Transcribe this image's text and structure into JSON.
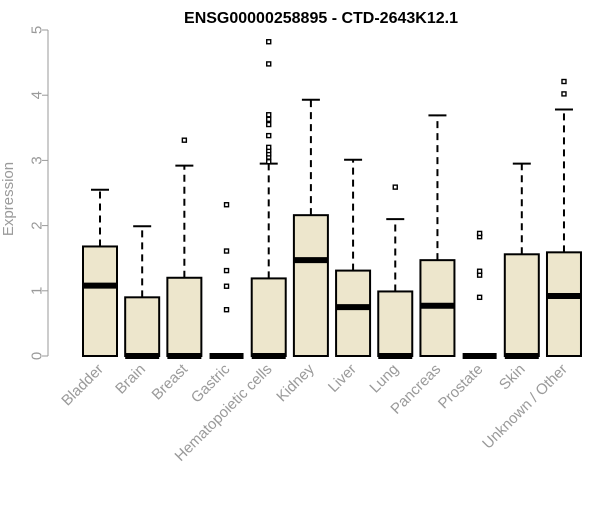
{
  "chart_data": {
    "type": "boxplot",
    "title": "ENSG00000258895 - CTD-2643K12.1",
    "xlabel": "",
    "ylabel": "Expression",
    "ylim": [
      0,
      5
    ],
    "yticks": [
      "0",
      "1",
      "2",
      "3",
      "4",
      "5"
    ],
    "grid": false,
    "colors": {
      "box_fill": "#ede6cc",
      "stroke": "#000000",
      "axis": "#9a9a9a",
      "label": "#9a9a9a"
    },
    "categories": [
      "Bladder",
      "Brain",
      "Breast",
      "Gastric",
      "Hematopoietic cells",
      "Kidney",
      "Liver",
      "Lung",
      "Pancreas",
      "Prostate",
      "Skin",
      "Unknown / Other"
    ],
    "boxes": [
      {
        "category": "Bladder",
        "q1": 0,
        "median": 1.08,
        "q3": 1.68,
        "whisker_low": 0,
        "whisker_high": 2.55,
        "outliers": []
      },
      {
        "category": "Brain",
        "q1": 0,
        "median": 0,
        "q3": 0.9,
        "whisker_low": 0,
        "whisker_high": 1.99,
        "outliers": []
      },
      {
        "category": "Breast",
        "q1": 0,
        "median": 0,
        "q3": 1.2,
        "whisker_low": 0,
        "whisker_high": 2.92,
        "outliers": [
          3.31
        ]
      },
      {
        "category": "Gastric",
        "q1": 0,
        "median": 0,
        "q3": 0,
        "whisker_low": 0,
        "whisker_high": 0,
        "outliers": [
          0.71,
          1.07,
          1.31,
          1.61,
          2.32
        ]
      },
      {
        "category": "Hematopoietic cells",
        "q1": 0,
        "median": 0,
        "q3": 1.19,
        "whisker_low": 0,
        "whisker_high": 2.95,
        "outliers": [
          2.98,
          3.05,
          3.1,
          3.15,
          3.2,
          3.38,
          3.55,
          3.63,
          3.7,
          4.48,
          4.82
        ]
      },
      {
        "category": "Kidney",
        "q1": 0,
        "median": 1.47,
        "q3": 2.16,
        "whisker_low": 0,
        "whisker_high": 3.93,
        "outliers": []
      },
      {
        "category": "Liver",
        "q1": 0,
        "median": 0.75,
        "q3": 1.31,
        "whisker_low": 0,
        "whisker_high": 3.01,
        "outliers": []
      },
      {
        "category": "Lung",
        "q1": 0,
        "median": 0,
        "q3": 0.99,
        "whisker_low": 0,
        "whisker_high": 2.1,
        "outliers": [
          2.59
        ]
      },
      {
        "category": "Pancreas",
        "q1": 0,
        "median": 0.77,
        "q3": 1.47,
        "whisker_low": 0,
        "whisker_high": 3.69,
        "outliers": []
      },
      {
        "category": "Prostate",
        "q1": 0,
        "median": 0,
        "q3": 0,
        "whisker_low": 0,
        "whisker_high": 0,
        "outliers": [
          0.9,
          1.24,
          1.3,
          1.83,
          1.88
        ]
      },
      {
        "category": "Skin",
        "q1": 0,
        "median": 0,
        "q3": 1.56,
        "whisker_low": 0,
        "whisker_high": 2.95,
        "outliers": []
      },
      {
        "category": "Unknown / Other",
        "q1": 0,
        "median": 0.92,
        "q3": 1.59,
        "whisker_low": 0,
        "whisker_high": 3.78,
        "outliers": [
          4.02,
          4.21
        ]
      }
    ]
  }
}
